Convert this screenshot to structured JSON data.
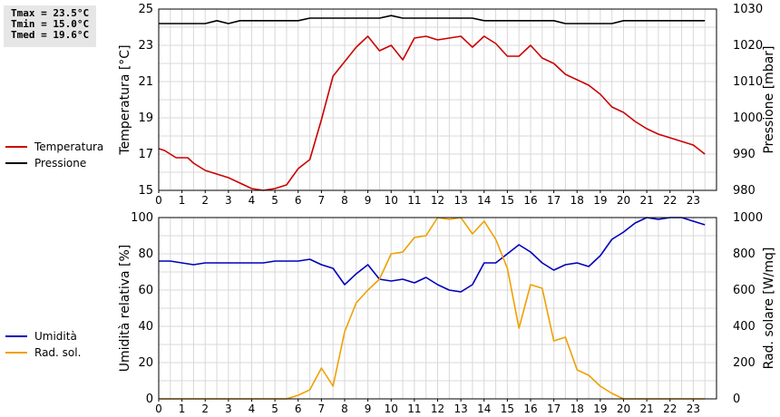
{
  "stats": {
    "tmax": "Tmax = 23.5°C",
    "tmin": "Tmin = 15.0°C",
    "tmed": "Tmed = 19.6°C"
  },
  "legend_top": [
    {
      "label": "Temperatura",
      "color": "#cc0000"
    },
    {
      "label": "Pressione",
      "color": "#000000"
    }
  ],
  "legend_bottom": [
    {
      "label": "Umidità",
      "color": "#0000bb"
    },
    {
      "label": "Rad. sol.",
      "color": "#f0a000"
    }
  ],
  "chart_data": [
    {
      "type": "line",
      "xlim": [
        0,
        24
      ],
      "x_ticks": [
        "0",
        "1",
        "2",
        "3",
        "4",
        "5",
        "6",
        "7",
        "8",
        "9",
        "10",
        "11",
        "12",
        "13",
        "14",
        "15",
        "16",
        "17",
        "18",
        "19",
        "20",
        "21",
        "22",
        "23"
      ],
      "ylabel": "Temperatura [°C]",
      "ylim": [
        15,
        25
      ],
      "y_ticks": [
        "15",
        "17",
        "19",
        "21",
        "23",
        "25"
      ],
      "ylabel_right": "Pressione [mbar]",
      "ylim_right": [
        980,
        1030
      ],
      "y_ticks_right": [
        "980",
        "990",
        "1000",
        "1010",
        "1020",
        "1030"
      ],
      "grid": true,
      "series": [
        {
          "name": "Temperatura",
          "color": "#cc0000",
          "axis": "left",
          "x": [
            0,
            0.25,
            0.5,
            0.75,
            1,
            1.25,
            1.5,
            2,
            2.5,
            3,
            3.5,
            4,
            4.5,
            5,
            5.5,
            6,
            6.5,
            7,
            7.5,
            8,
            8.5,
            9,
            9.5,
            10,
            10.5,
            11,
            11.5,
            12,
            12.5,
            13,
            13.5,
            14,
            14.5,
            15,
            15.5,
            16,
            16.5,
            17,
            17.5,
            18,
            18.5,
            19,
            19.5,
            20,
            20.5,
            21,
            21.5,
            22,
            22.5,
            23,
            23.5
          ],
          "values": [
            17.3,
            17.2,
            17.0,
            16.8,
            16.8,
            16.8,
            16.5,
            16.1,
            15.9,
            15.7,
            15.4,
            15.1,
            15.0,
            15.1,
            15.3,
            16.2,
            16.7,
            18.9,
            21.3,
            22.1,
            22.9,
            23.5,
            22.7,
            23.0,
            22.2,
            23.4,
            23.5,
            23.3,
            23.4,
            23.5,
            22.9,
            23.5,
            23.1,
            22.4,
            22.4,
            23.0,
            22.3,
            22.0,
            21.4,
            21.1,
            20.8,
            20.3,
            19.6,
            19.3,
            18.8,
            18.4,
            18.1,
            17.9,
            17.7,
            17.5,
            17.0
          ]
        },
        {
          "name": "Pressione",
          "color": "#000000",
          "axis": "right",
          "x": [
            0,
            0.5,
            1,
            1.5,
            2,
            2.5,
            3,
            3.5,
            4,
            4.5,
            5,
            5.5,
            6,
            6.5,
            7,
            7.5,
            8,
            8.5,
            9,
            9.5,
            10,
            10.5,
            11,
            11.5,
            12,
            12.5,
            13,
            13.5,
            14,
            14.5,
            15,
            15.5,
            16,
            16.5,
            17,
            17.5,
            18,
            18.5,
            19,
            19.5,
            20,
            20.5,
            21,
            21.5,
            22,
            22.5,
            23,
            23.5
          ],
          "values": [
            1026,
            1026,
            1026,
            1026,
            1026,
            1026.8,
            1026,
            1026.8,
            1026.8,
            1026.8,
            1026.8,
            1026.8,
            1026.8,
            1027.5,
            1027.5,
            1027.5,
            1027.5,
            1027.5,
            1027.5,
            1027.5,
            1028.2,
            1027.5,
            1027.5,
            1027.5,
            1027.5,
            1027.5,
            1027.5,
            1027.5,
            1026.8,
            1026.8,
            1026.8,
            1026.8,
            1026.8,
            1026.8,
            1026.8,
            1026,
            1026,
            1026,
            1026,
            1026,
            1026.8,
            1026.8,
            1026.8,
            1026.8,
            1026.8,
            1026.8,
            1026.8,
            1026.8
          ]
        }
      ]
    },
    {
      "type": "line",
      "xlim": [
        0,
        24
      ],
      "x_ticks": [
        "0",
        "1",
        "2",
        "3",
        "4",
        "5",
        "6",
        "7",
        "8",
        "9",
        "10",
        "11",
        "12",
        "13",
        "14",
        "15",
        "16",
        "17",
        "18",
        "19",
        "20",
        "21",
        "22",
        "23"
      ],
      "ylabel": "Umidità relativa [%]",
      "ylim": [
        0,
        100
      ],
      "y_ticks": [
        "0",
        "20",
        "40",
        "60",
        "80",
        "100"
      ],
      "ylabel_right": "Rad. solare [W/mq]",
      "ylim_right": [
        0,
        1000
      ],
      "y_ticks_right": [
        "0",
        "200",
        "400",
        "600",
        "800",
        "1000"
      ],
      "grid": true,
      "series": [
        {
          "name": "Umidità",
          "color": "#0000bb",
          "axis": "left",
          "x": [
            0,
            0.5,
            1,
            1.5,
            2,
            2.5,
            3,
            3.5,
            4,
            4.5,
            5,
            5.5,
            6,
            6.5,
            7,
            7.5,
            8,
            8.5,
            9,
            9.5,
            10,
            10.5,
            11,
            11.5,
            12,
            12.5,
            13,
            13.5,
            14,
            14.5,
            15,
            15.5,
            16,
            16.5,
            17,
            17.5,
            18,
            18.5,
            19,
            19.5,
            20,
            20.5,
            21,
            21.5,
            22,
            22.5,
            23,
            23.5
          ],
          "values": [
            76,
            76,
            75,
            74,
            75,
            75,
            75,
            75,
            75,
            75,
            76,
            76,
            76,
            77,
            74,
            72,
            63,
            69,
            74,
            66,
            65,
            66,
            64,
            67,
            63,
            60,
            59,
            63,
            75,
            75,
            80,
            85,
            81,
            75,
            71,
            74,
            75,
            73,
            79,
            88,
            92,
            97,
            100,
            99,
            100,
            100,
            98,
            96
          ]
        },
        {
          "name": "Rad. sol.",
          "color": "#f0a000",
          "axis": "right",
          "x": [
            0,
            0.5,
            1,
            1.5,
            2,
            2.5,
            3,
            3.5,
            4,
            4.5,
            5,
            5.5,
            6,
            6.5,
            7,
            7.5,
            8,
            8.5,
            9,
            9.5,
            10,
            10.5,
            11,
            11.5,
            12,
            12.5,
            13,
            13.5,
            14,
            14.5,
            15,
            15.5,
            16,
            16.5,
            17,
            17.5,
            18,
            18.5,
            19,
            19.5,
            20,
            20.5,
            21,
            21.5,
            22,
            22.5,
            23,
            23.5
          ],
          "values": [
            0,
            0,
            0,
            0,
            0,
            0,
            0,
            0,
            0,
            0,
            0,
            0,
            20,
            50,
            170,
            70,
            370,
            530,
            600,
            660,
            800,
            810,
            890,
            900,
            1000,
            990,
            1000,
            910,
            980,
            880,
            720,
            390,
            630,
            610,
            320,
            340,
            160,
            130,
            70,
            30,
            0,
            0,
            0,
            0,
            0,
            0,
            0,
            0
          ]
        }
      ]
    }
  ]
}
